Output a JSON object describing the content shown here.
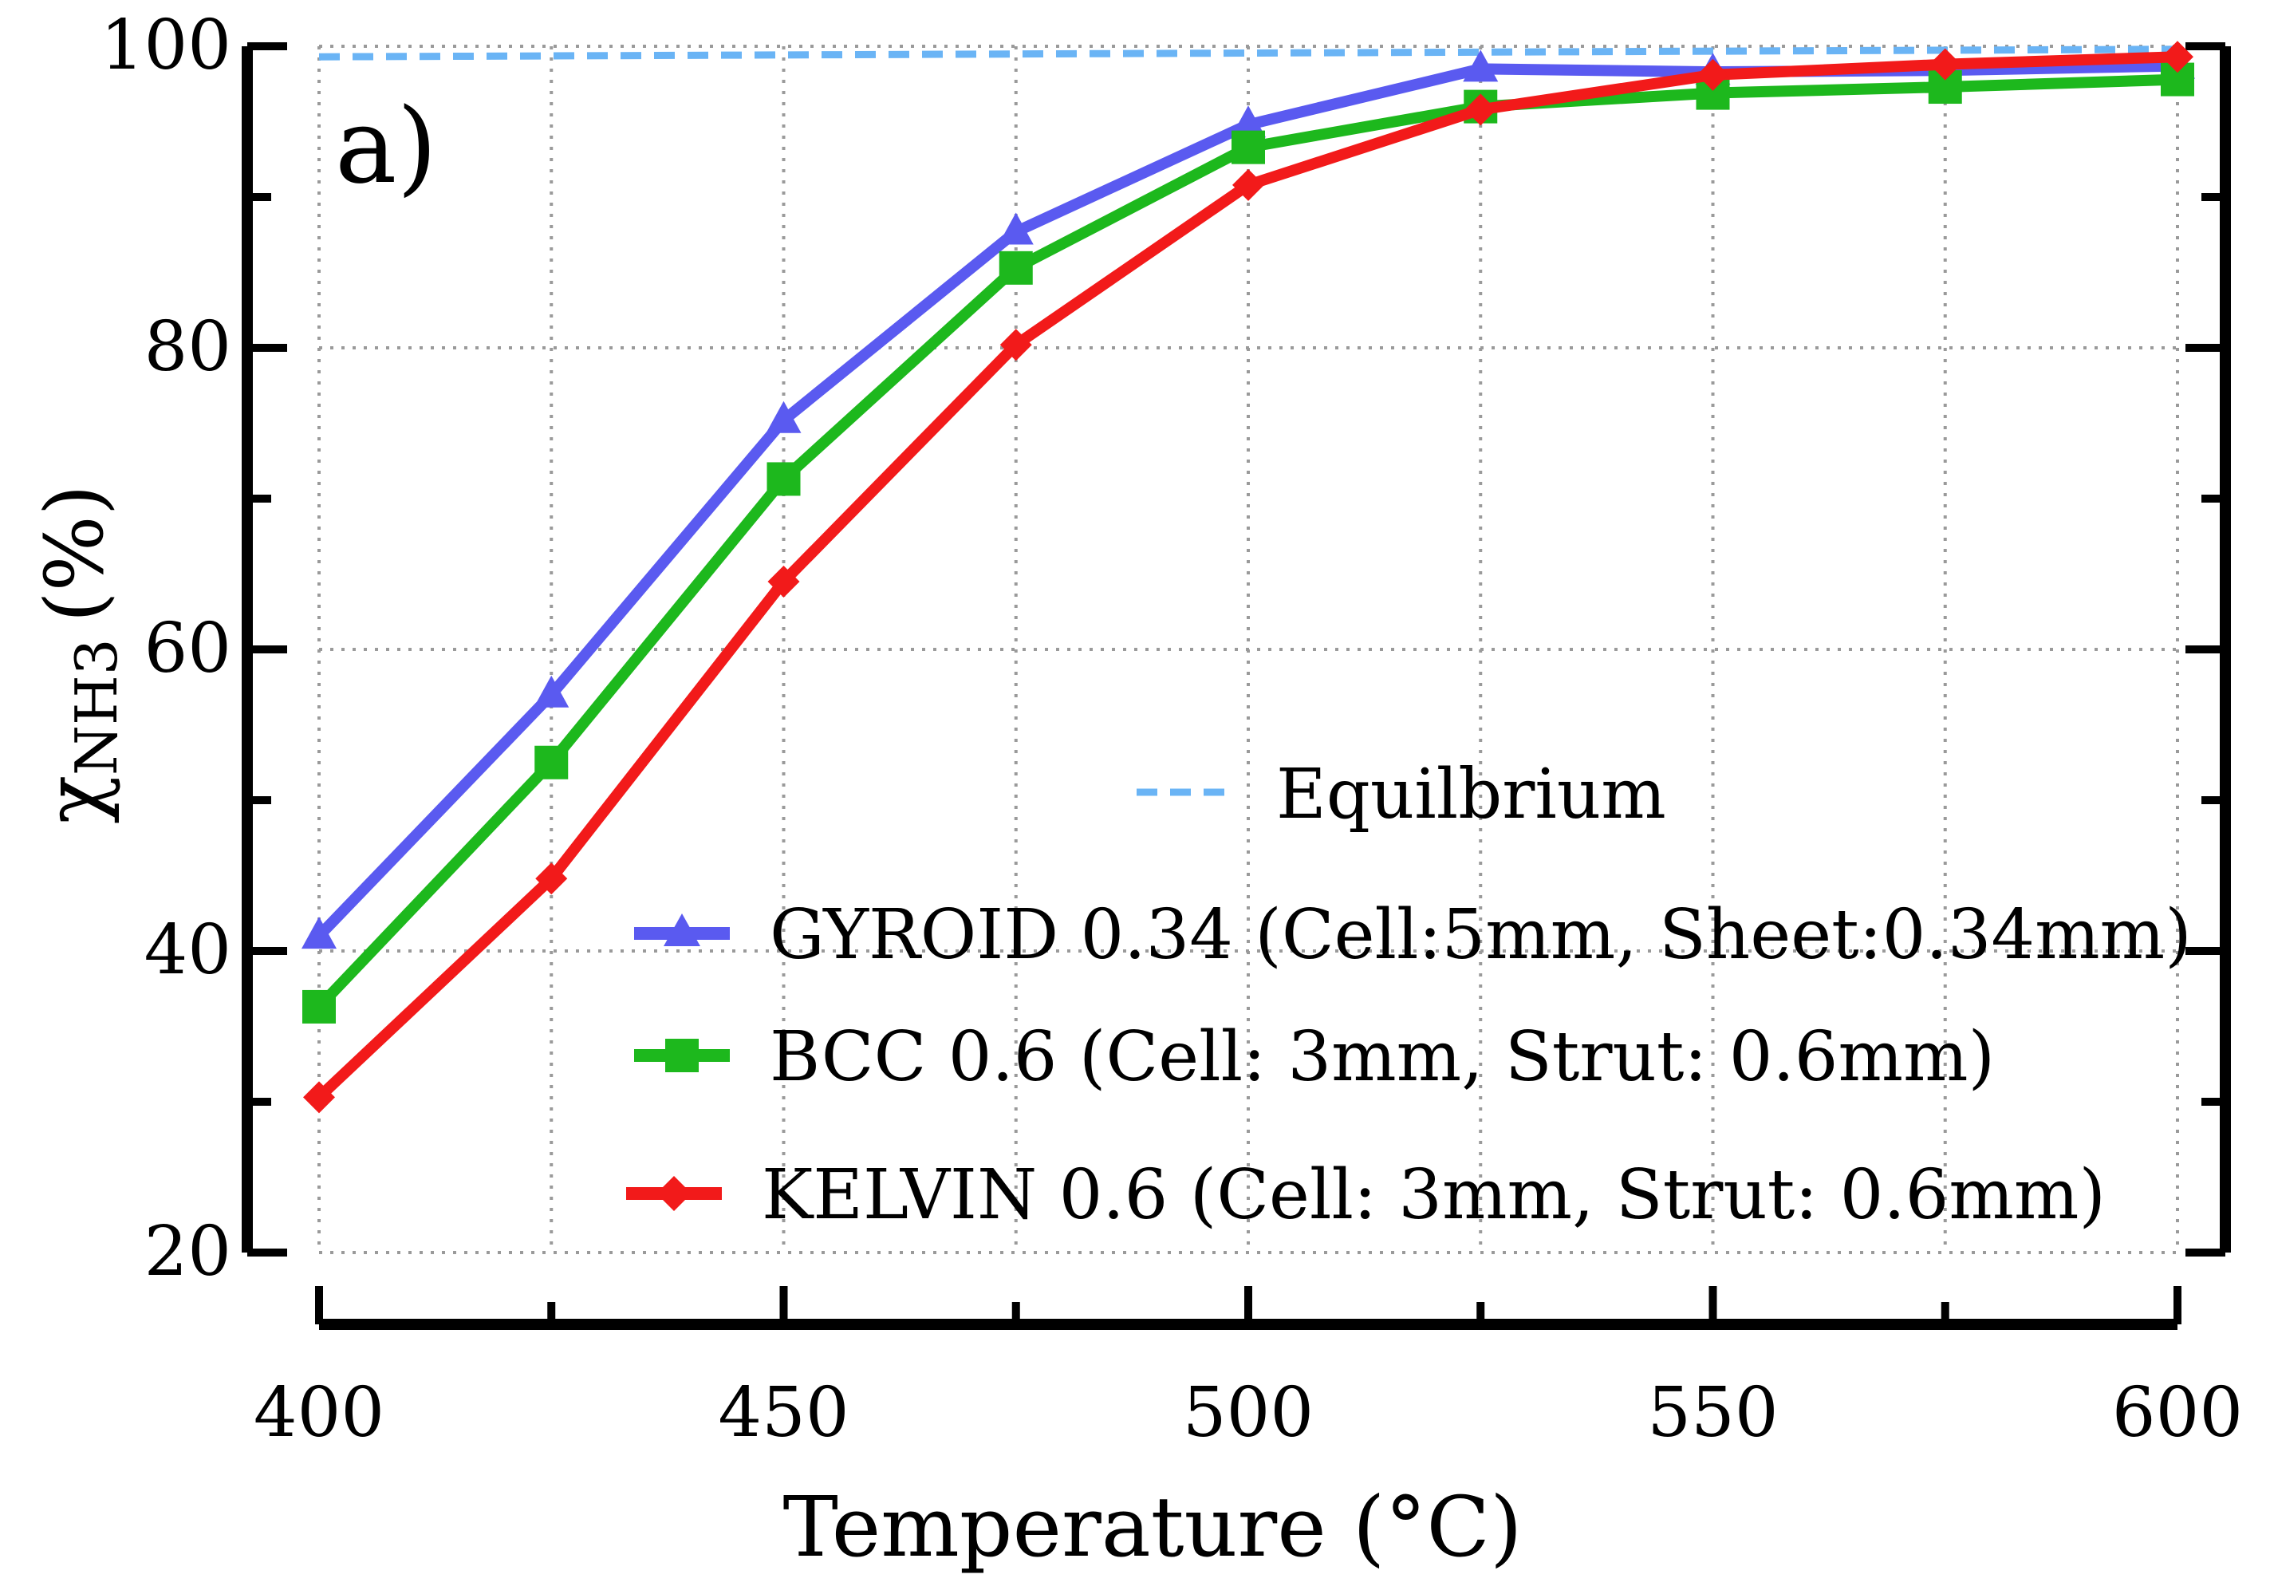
{
  "chart_data": {
    "type": "line",
    "panel_label": "a)",
    "xlabel": "Temperature (°C)",
    "ylabel_main": "χ",
    "ylabel_sub": "NH3",
    "ylabel_unit": "(%)",
    "xlim": [
      400,
      600
    ],
    "ylim": [
      20,
      100
    ],
    "xticks": [
      400,
      450,
      500,
      550,
      600
    ],
    "yticks": [
      20,
      40,
      60,
      80,
      100
    ],
    "xticks_minor": [
      425,
      475,
      525,
      575
    ],
    "yticks_minor": [
      30,
      50,
      70,
      90
    ],
    "grid": true,
    "legend_position": "lower-right",
    "x": [
      400,
      425,
      450,
      475,
      500,
      525,
      550,
      575,
      600
    ],
    "equilibrium": {
      "name": "Equilbrium",
      "color": "#6ab4f5",
      "style": "dashed",
      "x": [
        400,
        600
      ],
      "values": [
        99.3,
        99.8
      ]
    },
    "series": [
      {
        "name": "GYROID 0.34 (Cell:5mm, Sheet:0.34mm)",
        "color": "#5a5af0",
        "marker": "triangle",
        "values": [
          41.0,
          57.0,
          75.2,
          87.7,
          94.8,
          98.5,
          98.3,
          98.4,
          98.7
        ]
      },
      {
        "name": "BCC 0.6 (Cell: 3mm, Strut: 0.6mm)",
        "color": "#1db81d",
        "marker": "square",
        "values": [
          36.3,
          52.5,
          71.3,
          85.3,
          93.3,
          96.0,
          96.9,
          97.3,
          97.8
        ]
      },
      {
        "name": "KELVIN 0.6 (Cell: 3mm, Strut: 0.6mm)",
        "color": "#f21a1a",
        "marker": "diamond",
        "values": [
          30.3,
          44.8,
          64.5,
          80.2,
          90.8,
          95.8,
          98.1,
          98.8,
          99.3
        ]
      }
    ]
  }
}
